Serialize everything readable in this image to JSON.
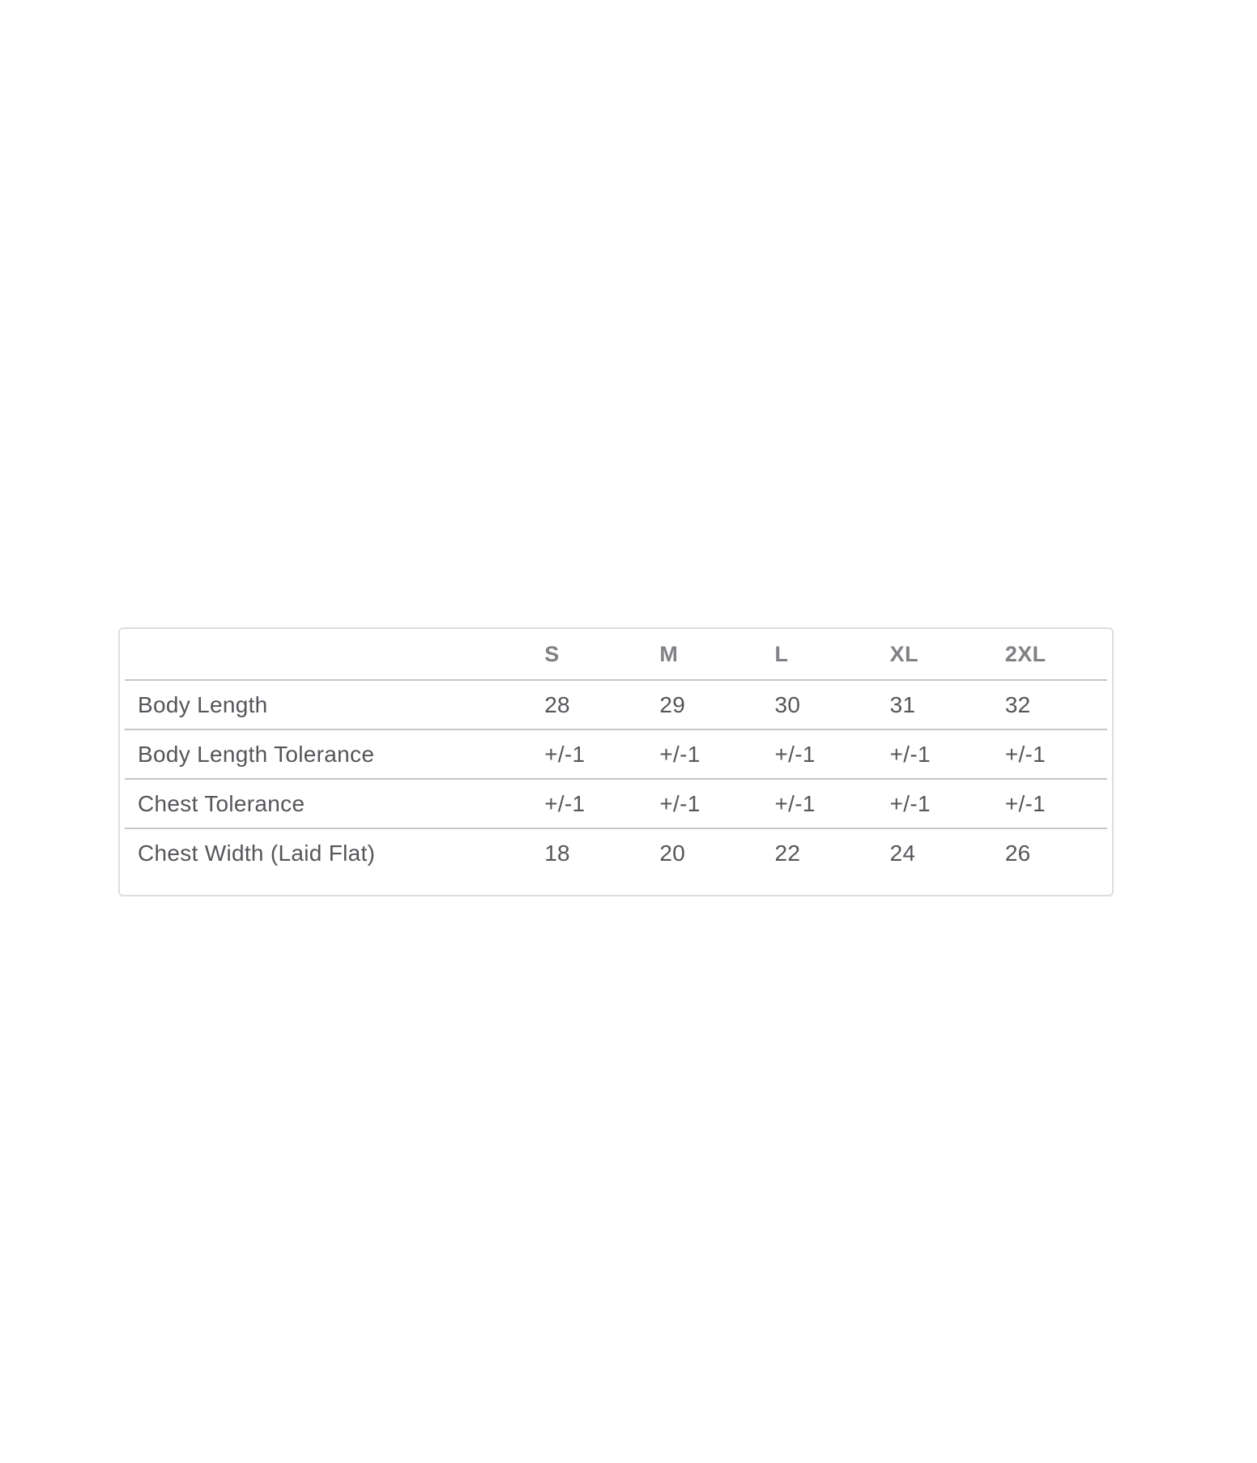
{
  "size_chart": {
    "columns": [
      "S",
      "M",
      "L",
      "XL",
      "2XL"
    ],
    "rows": [
      {
        "label": "Body Length",
        "values": [
          "28",
          "29",
          "30",
          "31",
          "32"
        ]
      },
      {
        "label": "Body Length Tolerance",
        "values": [
          "+/-1",
          "+/-1",
          "+/-1",
          "+/-1",
          "+/-1"
        ]
      },
      {
        "label": "Chest Tolerance",
        "values": [
          "+/-1",
          "+/-1",
          "+/-1",
          "+/-1",
          "+/-1"
        ]
      },
      {
        "label": "Chest Width (Laid Flat)",
        "values": [
          "18",
          "20",
          "22",
          "24",
          "26"
        ]
      }
    ],
    "colors": {
      "card_border": "#dddddd",
      "row_line": "#c5c6c7",
      "header_text": "#7f8184",
      "body_text": "#55565a",
      "background": "#ffffff"
    }
  }
}
